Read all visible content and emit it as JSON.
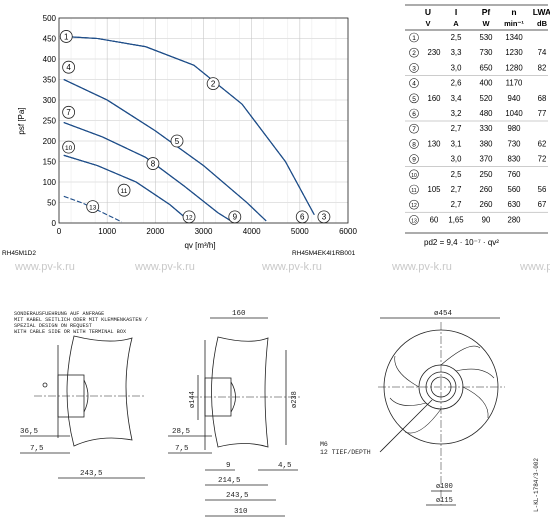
{
  "chart_data": {
    "type": "line",
    "xlabel": "qv [m³/h]",
    "ylabel": "psf [Pa]",
    "xlim": [
      0,
      6000
    ],
    "ylim": [
      0,
      500
    ],
    "x_ticks": [
      "0",
      "1000",
      "2000",
      "3000",
      "4000",
      "5000",
      "6000"
    ],
    "y_ticks": [
      "0",
      "50",
      "100",
      "150",
      "200",
      "250",
      "300",
      "350",
      "400",
      "450",
      "500"
    ],
    "grid": true,
    "source_left": "RH45M1D2",
    "source_right": "RH45M4EK4I1RB001",
    "series": [
      {
        "name": "1",
        "points": [
          [
            100,
            455
          ],
          [
            800,
            450
          ],
          [
            1800,
            430
          ],
          [
            2800,
            385
          ],
          [
            3800,
            290
          ],
          [
            4700,
            150
          ],
          [
            5300,
            20
          ]
        ]
      },
      {
        "name": "2",
        "points": [
          [
            100,
            455
          ],
          [
            800,
            450
          ],
          [
            1800,
            430
          ],
          [
            2800,
            385
          ],
          [
            3800,
            290
          ],
          [
            4700,
            150
          ],
          [
            5300,
            20
          ]
        ]
      },
      {
        "name": "3",
        "points": [
          [
            100,
            455
          ],
          [
            800,
            450
          ],
          [
            1800,
            430
          ],
          [
            2800,
            385
          ],
          [
            3800,
            290
          ],
          [
            4700,
            150
          ],
          [
            5300,
            20
          ]
        ]
      },
      {
        "name": "4",
        "points": [
          [
            100,
            350
          ],
          [
            1000,
            300
          ],
          [
            2000,
            225
          ],
          [
            3000,
            140
          ],
          [
            3900,
            50
          ],
          [
            4300,
            5
          ]
        ]
      },
      {
        "name": "5",
        "points": [
          [
            100,
            350
          ],
          [
            1000,
            300
          ],
          [
            2000,
            225
          ],
          [
            3000,
            140
          ],
          [
            3900,
            50
          ],
          [
            4300,
            5
          ]
        ]
      },
      {
        "name": "6",
        "points": [
          [
            100,
            350
          ],
          [
            1000,
            300
          ],
          [
            2000,
            225
          ],
          [
            3000,
            140
          ],
          [
            3900,
            50
          ],
          [
            4300,
            5
          ]
        ]
      },
      {
        "name": "7",
        "points": [
          [
            100,
            245
          ],
          [
            900,
            210
          ],
          [
            1800,
            160
          ],
          [
            2600,
            90
          ],
          [
            3300,
            25
          ],
          [
            3600,
            3
          ]
        ]
      },
      {
        "name": "8",
        "points": [
          [
            100,
            245
          ],
          [
            900,
            210
          ],
          [
            1800,
            160
          ],
          [
            2600,
            90
          ],
          [
            3300,
            25
          ],
          [
            3600,
            3
          ]
        ]
      },
      {
        "name": "9",
        "points": [
          [
            100,
            245
          ],
          [
            900,
            210
          ],
          [
            1800,
            160
          ],
          [
            2600,
            90
          ],
          [
            3300,
            25
          ],
          [
            3600,
            3
          ]
        ]
      },
      {
        "name": "10",
        "points": [
          [
            100,
            165
          ],
          [
            800,
            140
          ],
          [
            1600,
            100
          ],
          [
            2300,
            45
          ],
          [
            2700,
            5
          ]
        ]
      },
      {
        "name": "11",
        "points": [
          [
            100,
            165
          ],
          [
            800,
            140
          ],
          [
            1600,
            100
          ],
          [
            2300,
            45
          ],
          [
            2700,
            5
          ]
        ]
      },
      {
        "name": "12",
        "points": [
          [
            100,
            165
          ],
          [
            800,
            140
          ],
          [
            1600,
            100
          ],
          [
            2300,
            45
          ],
          [
            2700,
            5
          ]
        ]
      },
      {
        "name": "13",
        "points": [
          [
            100,
            65
          ],
          [
            500,
            48
          ],
          [
            1000,
            20
          ],
          [
            1300,
            3
          ]
        ]
      }
    ],
    "curve_labels": [
      {
        "text": "1",
        "x": 150,
        "y": 455
      },
      {
        "text": "2",
        "x": 3200,
        "y": 340
      },
      {
        "text": "3",
        "x": 5500,
        "y": 15
      },
      {
        "text": "4",
        "x": 200,
        "y": 380
      },
      {
        "text": "5",
        "x": 2450,
        "y": 200
      },
      {
        "text": "6",
        "x": 5050,
        "y": 15
      },
      {
        "text": "7",
        "x": 200,
        "y": 270
      },
      {
        "text": "8",
        "x": 1950,
        "y": 145
      },
      {
        "text": "9",
        "x": 3650,
        "y": 15
      },
      {
        "text": "10",
        "x": 200,
        "y": 185
      },
      {
        "text": "11",
        "x": 1350,
        "y": 80
      },
      {
        "text": "12",
        "x": 2700,
        "y": 15
      },
      {
        "text": "13",
        "x": 700,
        "y": 40
      }
    ]
  },
  "spec_table": {
    "headers": [
      "U",
      "I",
      "Pf",
      "n",
      "LWA"
    ],
    "units": [
      "V",
      "A",
      "W",
      "min⁻¹",
      "dB"
    ],
    "rows": [
      {
        "id": "1",
        "U": "",
        "I": "2,5",
        "P": "530",
        "n": "1340",
        "L": ""
      },
      {
        "id": "2",
        "U": "230",
        "I": "3,3",
        "P": "730",
        "n": "1230",
        "L": "74"
      },
      {
        "id": "3",
        "U": "",
        "I": "3,0",
        "P": "650",
        "n": "1280",
        "L": "82"
      },
      {
        "id": "4",
        "U": "",
        "I": "2,6",
        "P": "400",
        "n": "1170",
        "L": ""
      },
      {
        "id": "5",
        "U": "160",
        "I": "3,4",
        "P": "520",
        "n": "940",
        "L": "68"
      },
      {
        "id": "6",
        "U": "",
        "I": "3,2",
        "P": "480",
        "n": "1040",
        "L": "77"
      },
      {
        "id": "7",
        "U": "",
        "I": "2,7",
        "P": "330",
        "n": "980",
        "L": ""
      },
      {
        "id": "8",
        "U": "130",
        "I": "3,1",
        "P": "380",
        "n": "730",
        "L": "62"
      },
      {
        "id": "9",
        "U": "",
        "I": "3,0",
        "P": "370",
        "n": "830",
        "L": "72"
      },
      {
        "id": "10",
        "U": "",
        "I": "2,5",
        "P": "250",
        "n": "760",
        "L": ""
      },
      {
        "id": "11",
        "U": "105",
        "I": "2,7",
        "P": "260",
        "n": "560",
        "L": "56"
      },
      {
        "id": "12",
        "U": "",
        "I": "2,7",
        "P": "260",
        "n": "630",
        "L": "67"
      },
      {
        "id": "13",
        "U": "60",
        "I": "1,65",
        "P": "90",
        "n": "280",
        "L": ""
      }
    ],
    "formula": "pd2 = 9,4 · 10⁻⁷ · qv²"
  },
  "watermark": "www.pv-k.ru",
  "drawing": {
    "note_lines": [
      "SONDERAUSFUEHRUNG AUF ANFRAGE",
      "MIT KABEL SEITLICH ODER MIT KLEMMENKASTEN /",
      "SPEZIAL DESIGN ON REQUEST",
      "WITH CABLE SIDE OR WITH TERMINAL BOX"
    ],
    "dim_36_5": "36,5",
    "dim_7_5a": "7,5",
    "dim_243_5a": "243,5",
    "dim_160": "160",
    "dim_144": "ø144",
    "dim_238": "ø238",
    "dim_28_5": "28,5",
    "dim_7_5b": "7,5",
    "dim_9": "9",
    "dim_4_5": "4,5",
    "dim_214_5": "214,5",
    "dim_243_5b": "243,5",
    "dim_310": "310",
    "dim_454": "ø454",
    "thread_label": "M6",
    "thread_depth": "12 TIEF/DEPTH",
    "dim_100": "ø100",
    "dim_115": "ø115",
    "drawing_no": "L-KL-1784/3-002"
  }
}
